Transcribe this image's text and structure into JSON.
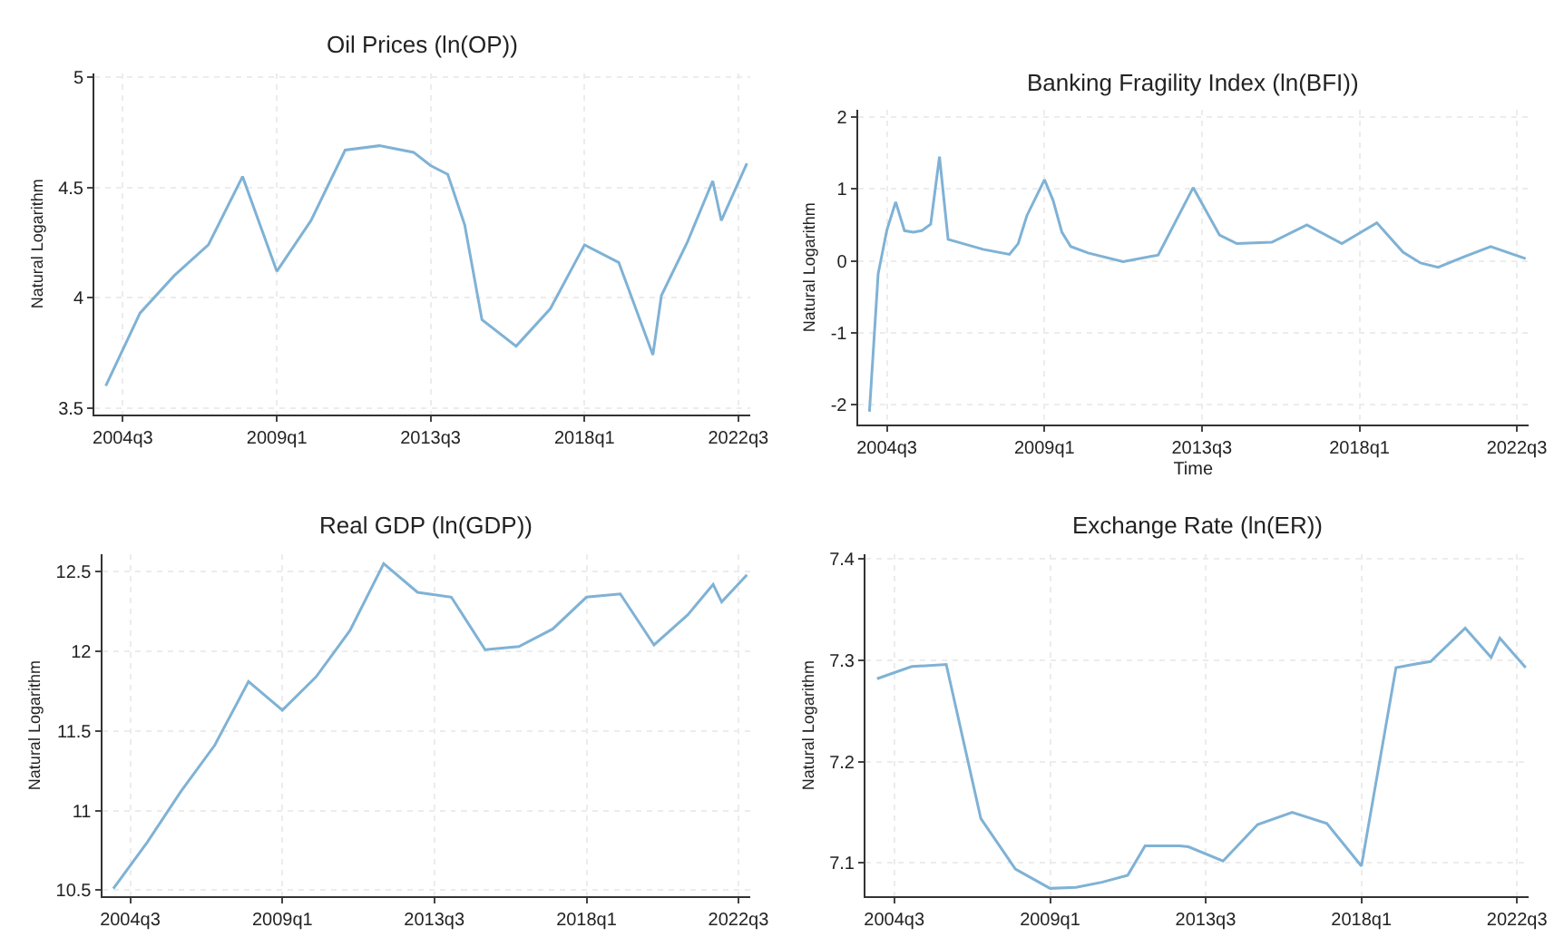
{
  "chart_data": [
    {
      "type": "line",
      "title": "Oil Prices (ln(OP))",
      "ylabel": "Natural Logarithm",
      "color": "#7fb2d5",
      "grid": true,
      "x": [
        "2004-01",
        "2005-01",
        "2006-01",
        "2007-01",
        "2008-01",
        "2009-01",
        "2010-01",
        "2011-01",
        "2012-01",
        "2013-01",
        "2013-07",
        "2014-01",
        "2014-07",
        "2015-01",
        "2016-01",
        "2017-01",
        "2018-01",
        "2019-01",
        "2020-01",
        "2020-04",
        "2021-01",
        "2021-10",
        "2022-01",
        "2022-10"
      ],
      "values": [
        3.6,
        3.93,
        4.1,
        4.24,
        4.55,
        4.12,
        4.35,
        4.67,
        4.69,
        4.66,
        4.6,
        4.56,
        4.33,
        3.9,
        3.78,
        3.95,
        4.24,
        4.16,
        3.74,
        4.01,
        4.25,
        4.53,
        4.35,
        4.61
      ],
      "xlim": [
        "2003-09",
        "2022-11"
      ],
      "ylim": [
        3.47,
        5.02
      ],
      "xticks": [
        {
          "value": "2004-07",
          "label": "2004q3"
        },
        {
          "value": "2009-01",
          "label": "2009q1"
        },
        {
          "value": "2013-07",
          "label": "2013q3"
        },
        {
          "value": "2018-01",
          "label": "2018q1"
        },
        {
          "value": "2022-07",
          "label": "2022q3"
        }
      ],
      "yticks": [
        3.5,
        4,
        4.5,
        5
      ]
    },
    {
      "type": "line",
      "title": "Banking Fragility Index (ln(BFI))",
      "xlabel": "Time",
      "ylabel": "Natural Logarithm",
      "color": "#7fb2d5",
      "grid": true,
      "x": [
        "2004-01",
        "2004-04",
        "2004-07",
        "2004-10",
        "2005-01",
        "2005-04",
        "2005-07",
        "2005-10",
        "2006-01",
        "2006-04",
        "2007-04",
        "2008-01",
        "2008-04",
        "2008-07",
        "2009-01",
        "2009-04",
        "2009-07",
        "2009-10",
        "2010-04",
        "2011-04",
        "2012-04",
        "2013-04",
        "2014-01",
        "2014-07",
        "2015-07",
        "2016-07",
        "2017-07",
        "2018-07",
        "2019-04",
        "2019-10",
        "2020-04",
        "2021-01",
        "2021-10",
        "2022-10"
      ],
      "values": [
        -2.1,
        -0.18,
        0.43,
        0.82,
        0.42,
        0.4,
        0.42,
        0.51,
        1.45,
        0.3,
        0.16,
        0.09,
        0.24,
        0.63,
        1.13,
        0.84,
        0.4,
        0.2,
        0.11,
        -0.01,
        0.08,
        1.02,
        0.36,
        0.24,
        0.26,
        0.5,
        0.24,
        0.53,
        0.12,
        -0.03,
        -0.09,
        0.06,
        0.2,
        0.03
      ],
      "xlim": [
        "2003-09",
        "2022-11"
      ],
      "ylim": [
        -2.28,
        2.1
      ],
      "xticks": [
        {
          "value": "2004-07",
          "label": "2004q3"
        },
        {
          "value": "2009-01",
          "label": "2009q1"
        },
        {
          "value": "2013-07",
          "label": "2013q3"
        },
        {
          "value": "2018-01",
          "label": "2018q1"
        },
        {
          "value": "2022-07",
          "label": "2022q3"
        }
      ],
      "yticks": [
        -2,
        -1,
        0,
        1,
        2
      ]
    },
    {
      "type": "line",
      "title": "Real GDP (ln(GDP))",
      "ylabel": "Natural Logarithm",
      "color": "#7fb2d5",
      "grid": true,
      "x": [
        "2004-01",
        "2005-01",
        "2006-01",
        "2007-01",
        "2008-01",
        "2009-01",
        "2010-01",
        "2011-01",
        "2012-01",
        "2013-01",
        "2014-01",
        "2015-01",
        "2016-01",
        "2017-01",
        "2018-01",
        "2019-01",
        "2020-01",
        "2021-01",
        "2021-10",
        "2022-01",
        "2022-10"
      ],
      "values": [
        10.51,
        10.8,
        11.12,
        11.41,
        11.81,
        11.63,
        11.84,
        12.13,
        12.55,
        12.37,
        12.34,
        12.01,
        12.03,
        12.14,
        12.34,
        12.36,
        12.04,
        12.23,
        12.42,
        12.31,
        12.48
      ],
      "xlim": [
        "2003-09",
        "2022-11"
      ],
      "ylim": [
        10.46,
        12.61
      ],
      "xticks": [
        {
          "value": "2004-07",
          "label": "2004q3"
        },
        {
          "value": "2009-01",
          "label": "2009q1"
        },
        {
          "value": "2013-07",
          "label": "2013q3"
        },
        {
          "value": "2018-01",
          "label": "2018q1"
        },
        {
          "value": "2022-07",
          "label": "2022q3"
        }
      ],
      "yticks": [
        10.5,
        11,
        11.5,
        12,
        12.5
      ]
    },
    {
      "type": "line",
      "title": "Exchange Rate (ln(ER))",
      "ylabel": "Natural Logarithm",
      "color": "#7fb2d5",
      "grid": true,
      "x": [
        "2004-01",
        "2005-01",
        "2006-01",
        "2007-01",
        "2008-01",
        "2009-01",
        "2009-10",
        "2010-07",
        "2011-04",
        "2011-10",
        "2012-10",
        "2013-01",
        "2014-01",
        "2015-01",
        "2016-01",
        "2017-01",
        "2018-01",
        "2019-01",
        "2019-07",
        "2020-01",
        "2021-01",
        "2021-10",
        "2022-01",
        "2022-10"
      ],
      "values": [
        7.282,
        7.294,
        7.296,
        7.144,
        7.094,
        7.075,
        7.076,
        7.081,
        7.088,
        7.117,
        7.117,
        7.116,
        7.102,
        7.138,
        7.15,
        7.139,
        7.097,
        7.293,
        7.296,
        7.299,
        7.332,
        7.303,
        7.322,
        7.293
      ],
      "xlim": [
        "2003-09",
        "2022-11"
      ],
      "ylim": [
        7.067,
        7.405
      ],
      "xticks": [
        {
          "value": "2004-07",
          "label": "2004q3"
        },
        {
          "value": "2009-01",
          "label": "2009q1"
        },
        {
          "value": "2013-07",
          "label": "2013q3"
        },
        {
          "value": "2018-01",
          "label": "2018q1"
        },
        {
          "value": "2022-07",
          "label": "2022q3"
        }
      ],
      "yticks": [
        7.1,
        7.2,
        7.3,
        7.4
      ]
    }
  ]
}
